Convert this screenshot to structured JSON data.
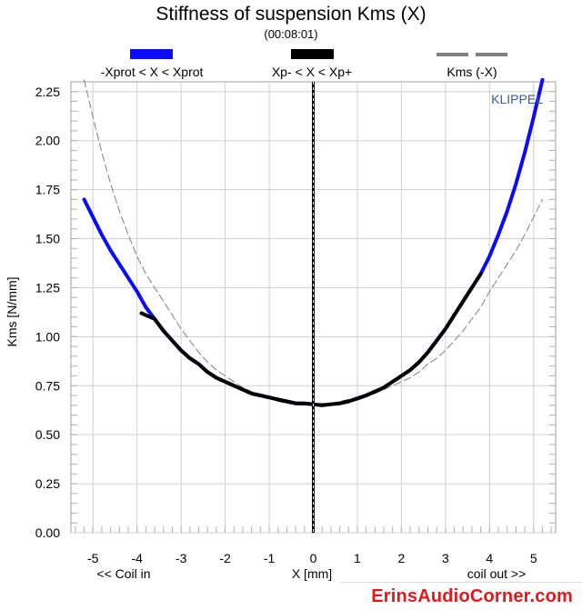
{
  "chart_data": {
    "type": "line",
    "title": "Stiffness of suspension Kms (X)",
    "subtitle": "(00:08:01)",
    "xlabel": "X [mm]",
    "ylabel": "Kms [N/mm]",
    "x_left_note": "<< Coil in",
    "x_right_note": "coil out >>",
    "xlim": [
      -5.5,
      5.5
    ],
    "ylim": [
      0,
      2.3
    ],
    "x_ticks": [
      "-5",
      "-4",
      "-3",
      "-2",
      "-1",
      "0",
      "1",
      "2",
      "3",
      "4",
      "5"
    ],
    "y_ticks": [
      "0.00",
      "0.25",
      "0.50",
      "0.75",
      "1.00",
      "1.25",
      "1.50",
      "1.75",
      "2.00",
      "2.25"
    ],
    "grid": true,
    "legend": [
      {
        "label": "-Xprot < X < Xprot",
        "color": "#0a0aff"
      },
      {
        "label": "Xp- < X < Xp+",
        "color": "#000000"
      },
      {
        "label": "Kms (-X)",
        "color": "#808080"
      }
    ],
    "series": [
      {
        "name": "-Xprot < X < Xprot",
        "color": "#0a0aff",
        "x": [
          -5.2,
          -5.0,
          -4.8,
          -4.6,
          -4.4,
          -4.2,
          -4.0,
          -3.8,
          -3.6,
          -3.4,
          -3.2,
          -3.0,
          -2.8,
          -2.6,
          -2.4,
          -2.2,
          -2.0,
          -1.8,
          -1.6,
          -1.4,
          -1.2,
          -1.0,
          -0.8,
          -0.6,
          -0.4,
          -0.2,
          0.0,
          0.2,
          0.4,
          0.6,
          0.8,
          1.0,
          1.2,
          1.4,
          1.6,
          1.8,
          2.0,
          2.2,
          2.4,
          2.6,
          2.8,
          3.0,
          3.2,
          3.4,
          3.6,
          3.8,
          4.0,
          4.2,
          4.4,
          4.6,
          4.8,
          5.0,
          5.2
        ],
        "y": [
          1.7,
          1.61,
          1.52,
          1.44,
          1.37,
          1.3,
          1.23,
          1.15,
          1.09,
          1.03,
          0.98,
          0.93,
          0.89,
          0.86,
          0.82,
          0.79,
          0.77,
          0.75,
          0.73,
          0.71,
          0.7,
          0.69,
          0.68,
          0.67,
          0.66,
          0.66,
          0.655,
          0.65,
          0.655,
          0.66,
          0.67,
          0.685,
          0.7,
          0.72,
          0.74,
          0.77,
          0.8,
          0.83,
          0.87,
          0.92,
          0.98,
          1.04,
          1.11,
          1.18,
          1.25,
          1.32,
          1.41,
          1.52,
          1.64,
          1.78,
          1.94,
          2.12,
          2.31
        ]
      },
      {
        "name": "Xp- < X < Xp+",
        "color": "#000000",
        "x": [
          -3.9,
          -3.6,
          -3.4,
          -3.2,
          -3.0,
          -2.8,
          -2.6,
          -2.4,
          -2.2,
          -2.0,
          -1.8,
          -1.6,
          -1.4,
          -1.2,
          -1.0,
          -0.8,
          -0.6,
          -0.4,
          -0.2,
          0.0,
          0.2,
          0.4,
          0.6,
          0.8,
          1.0,
          1.2,
          1.4,
          1.6,
          1.8,
          2.0,
          2.2,
          2.4,
          2.6,
          2.8,
          3.0,
          3.2,
          3.4,
          3.6,
          3.8
        ],
        "y": [
          1.12,
          1.09,
          1.03,
          0.98,
          0.93,
          0.89,
          0.86,
          0.82,
          0.79,
          0.77,
          0.75,
          0.73,
          0.71,
          0.7,
          0.69,
          0.68,
          0.67,
          0.66,
          0.66,
          0.655,
          0.65,
          0.655,
          0.66,
          0.67,
          0.685,
          0.7,
          0.72,
          0.74,
          0.77,
          0.8,
          0.83,
          0.87,
          0.92,
          0.98,
          1.04,
          1.11,
          1.18,
          1.25,
          1.32
        ]
      },
      {
        "name": "Kms (-X)",
        "color": "#808080",
        "dashed": true,
        "x": [
          -5.2,
          -5.0,
          -4.8,
          -4.6,
          -4.4,
          -4.2,
          -4.0,
          -3.8,
          -3.6,
          -3.4,
          -3.2,
          -3.0,
          -2.8,
          -2.6,
          -2.4,
          -2.2,
          -2.0,
          -1.8,
          -1.6,
          -1.4,
          -1.2,
          -1.0,
          -0.8,
          -0.6,
          -0.4,
          -0.2,
          0.0,
          0.2,
          0.4,
          0.6,
          0.8,
          1.0,
          1.2,
          1.4,
          1.6,
          1.8,
          2.0,
          2.2,
          2.4,
          2.6,
          2.8,
          3.0,
          3.2,
          3.4,
          3.6,
          3.8,
          4.0,
          4.2,
          4.4,
          4.6,
          4.8,
          5.0,
          5.2
        ],
        "y": [
          2.31,
          2.12,
          1.94,
          1.78,
          1.64,
          1.52,
          1.41,
          1.32,
          1.25,
          1.18,
          1.11,
          1.04,
          0.98,
          0.92,
          0.87,
          0.83,
          0.8,
          0.77,
          0.74,
          0.72,
          0.7,
          0.685,
          0.67,
          0.66,
          0.655,
          0.65,
          0.655,
          0.66,
          0.66,
          0.67,
          0.68,
          0.69,
          0.7,
          0.71,
          0.73,
          0.75,
          0.77,
          0.79,
          0.82,
          0.86,
          0.89,
          0.93,
          0.98,
          1.03,
          1.09,
          1.15,
          1.23,
          1.3,
          1.37,
          1.44,
          1.52,
          1.61,
          1.7
        ]
      }
    ],
    "annotations": [
      "KLIPPEL"
    ]
  },
  "watermark": "ErinsAudioCorner.com"
}
